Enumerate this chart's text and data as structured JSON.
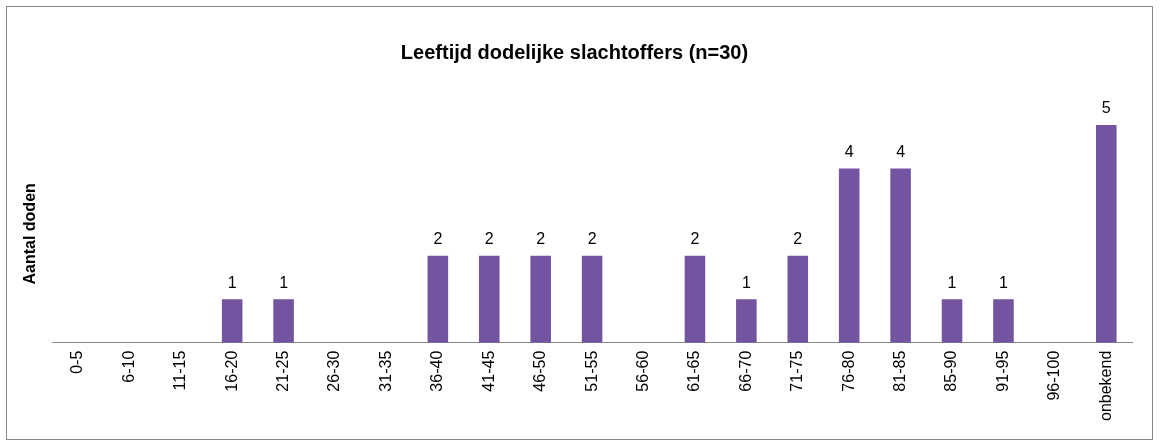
{
  "chart_data": {
    "type": "bar",
    "title": "Leeftijd dodelijke slachtoffers (n=30)",
    "ylabel": "Aantal doden",
    "categories": [
      "0-5",
      "6-10",
      "11-15",
      "16-20",
      "21-25",
      "26-30",
      "31-35",
      "36-40",
      "41-45",
      "46-50",
      "51-55",
      "56-60",
      "61-65",
      "66-70",
      "71-75",
      "76-80",
      "81-85",
      "85-90",
      "91-95",
      "96-100",
      "onbekend"
    ],
    "values": [
      0,
      0,
      0,
      1,
      1,
      0,
      0,
      2,
      2,
      2,
      2,
      0,
      2,
      1,
      2,
      4,
      4,
      1,
      1,
      0,
      5
    ],
    "value_labels": [
      null,
      null,
      null,
      "1",
      "1",
      null,
      null,
      "2",
      "2",
      "2",
      "2",
      null,
      "2",
      "1",
      "2",
      "4",
      "4",
      "1",
      "1",
      null,
      "5"
    ],
    "color": "#7354a0",
    "grid": false,
    "legend": false,
    "tick_labels": "x"
  }
}
